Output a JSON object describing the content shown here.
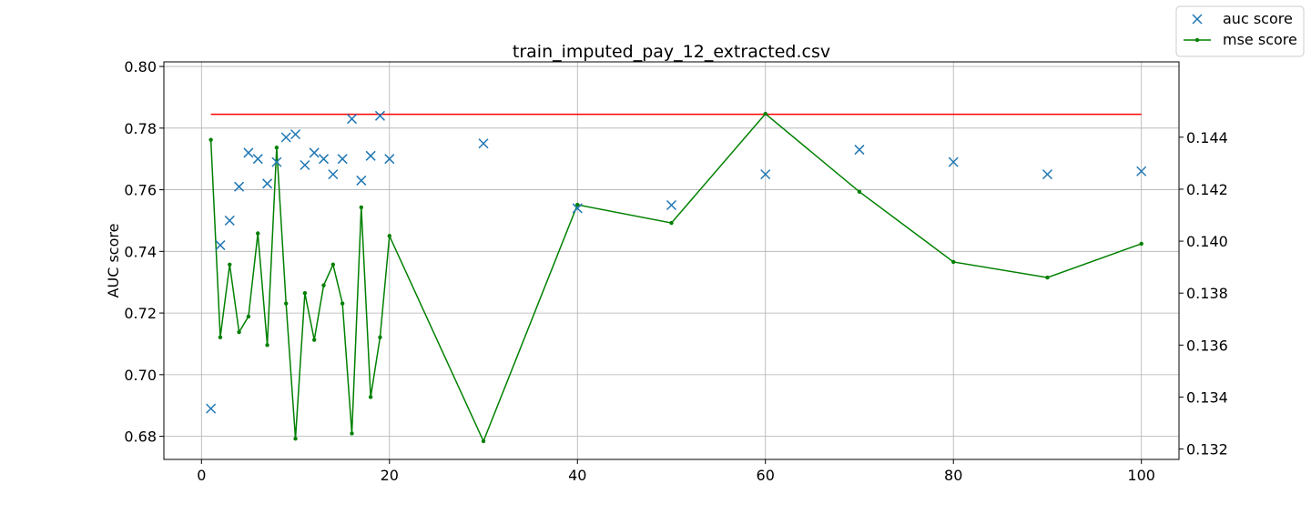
{
  "chart_data": {
    "type": "scatter",
    "title": "train_imputed_pay_12_extracted.csv",
    "ylabel_left": "AUC score",
    "xlim": [
      -4,
      104
    ],
    "ylim_left": [
      0.6725,
      0.8015
    ],
    "ylim_right": [
      0.1316,
      0.1469
    ],
    "grid": true,
    "legend_position": "top-right",
    "x_ticks": [
      0,
      20,
      40,
      60,
      80,
      100
    ],
    "y_ticks_left": [
      0.68,
      0.7,
      0.72,
      0.74,
      0.76,
      0.78,
      0.8
    ],
    "y_ticks_right": [
      0.132,
      0.134,
      0.136,
      0.138,
      0.14,
      0.142,
      0.144
    ],
    "x_tick_labels": [
      "0",
      "20",
      "40",
      "60",
      "80",
      "100"
    ],
    "y_tick_labels_left": [
      "0.68",
      "0.70",
      "0.72",
      "0.74",
      "0.76",
      "0.78",
      "0.80"
    ],
    "y_tick_labels_right": [
      "0.132",
      "0.134",
      "0.136",
      "0.138",
      "0.140",
      "0.142",
      "0.144"
    ],
    "series": [
      {
        "name": "auc score",
        "kind": "scatter",
        "axis": "left",
        "marker": "x",
        "color": "#1f77b4",
        "x": [
          1,
          2,
          3,
          4,
          5,
          6,
          7,
          8,
          9,
          10,
          11,
          12,
          13,
          14,
          15,
          16,
          17,
          18,
          19,
          20,
          30,
          40,
          50,
          60,
          70,
          80,
          90,
          100
        ],
        "y": [
          0.689,
          0.742,
          0.75,
          0.761,
          0.772,
          0.77,
          0.762,
          0.769,
          0.777,
          0.778,
          0.768,
          0.772,
          0.77,
          0.765,
          0.77,
          0.783,
          0.763,
          0.771,
          0.784,
          0.77,
          0.775,
          0.754,
          0.755,
          0.765,
          0.773,
          0.769,
          0.765,
          0.766
        ]
      },
      {
        "name": "mse score",
        "kind": "line",
        "axis": "right",
        "marker": ".",
        "color": "#008000",
        "x": [
          1,
          2,
          3,
          4,
          5,
          6,
          7,
          8,
          9,
          10,
          11,
          12,
          13,
          14,
          15,
          16,
          17,
          18,
          19,
          20,
          30,
          40,
          50,
          60,
          70,
          80,
          90,
          100
        ],
        "y": [
          0.1439,
          0.1363,
          0.1391,
          0.1365,
          0.1371,
          0.1403,
          0.136,
          0.1436,
          0.1376,
          0.1324,
          0.138,
          0.1362,
          0.1383,
          0.1391,
          0.1376,
          0.1326,
          0.1413,
          0.134,
          0.1363,
          0.1402,
          0.1323,
          0.1414,
          0.1407,
          0.1449,
          0.1419,
          0.1392,
          0.1386,
          0.1399
        ]
      },
      {
        "kind": "hline",
        "axis": "left",
        "color": "#ff0000",
        "x": [
          1,
          100
        ],
        "y": [
          0.7845,
          0.7845
        ]
      }
    ]
  }
}
